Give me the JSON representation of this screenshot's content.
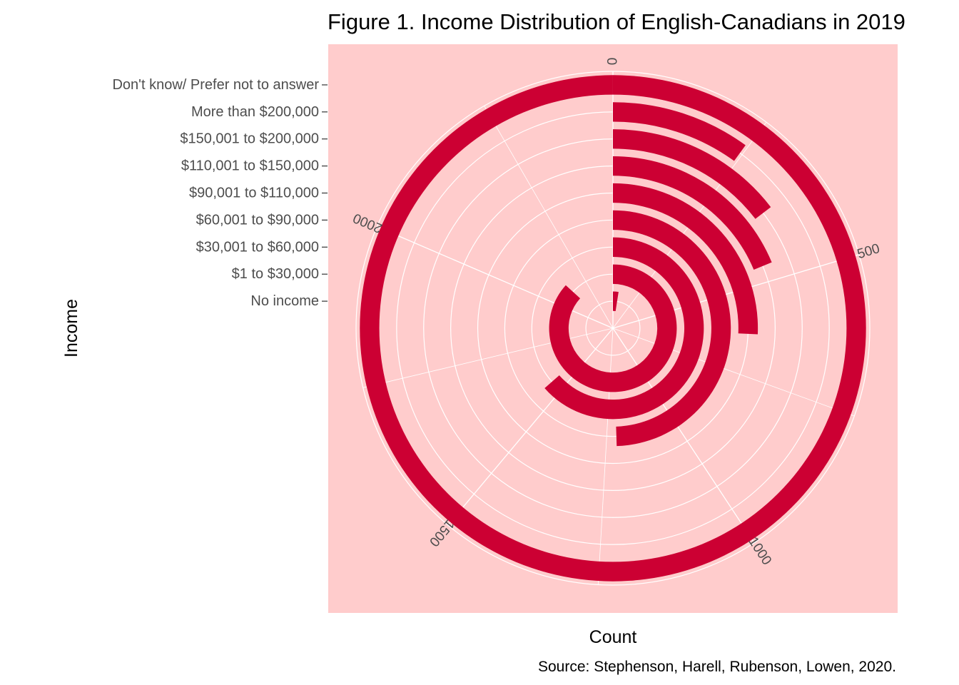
{
  "chart_data": {
    "type": "bar",
    "coord": "polar",
    "title": "Figure 1. Income Distribution of English-Canadians in 2019",
    "xlabel": "Income",
    "ylabel": "Count",
    "caption": "Source: Stephenson, Harell, Rubenson, Lowen, 2020.",
    "categories": [
      "No income",
      "$1 to $30,000",
      "$30,001 to $60,000",
      "$60,001 to $90,000",
      "$90,001 to $110,000",
      "$110,001 to $150,000",
      "$150,001 to $200,000",
      "More than $200,000",
      "Don't know/ Prefer not to answer"
    ],
    "values": [
      60,
      2130,
      1560,
      1215,
      630,
      460,
      358,
      245,
      2455
    ],
    "y_ticks": [
      0,
      500,
      1000,
      1500,
      2000
    ],
    "ylim": [
      0,
      2455
    ],
    "grid": true,
    "bar_color": "#cc0033",
    "panel_color": "#ffcccc",
    "grid_color": "#ffffff"
  }
}
